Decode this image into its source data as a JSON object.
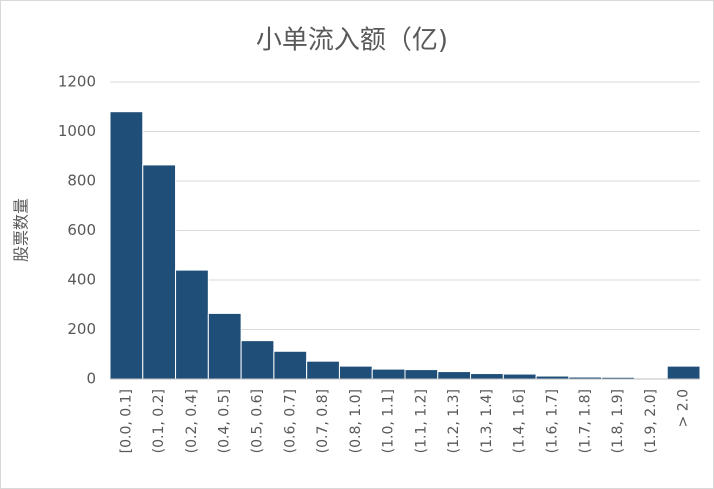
{
  "chart_data": {
    "type": "bar",
    "title": "小单流入额（亿)",
    "y_label": "股票数量",
    "categories": [
      "[0.0, 0.1]",
      "(0.1, 0.2]",
      "(0.2, 0.4]",
      "(0.4, 0.5]",
      "(0.5, 0.6]",
      "(0.6, 0.7]",
      "(0.7, 0.8]",
      "(0.8, 1.0]",
      "(1.0, 1.1]",
      "(1.1, 1.2]",
      "(1.2, 1.3]",
      "(1.3, 1.4]",
      "(1.4, 1.6]",
      "(1.6, 1.7]",
      "(1.7, 1.8]",
      "(1.8, 1.9]",
      "(1.9, 2.0]",
      "> 2.0"
    ],
    "values": [
      1080,
      865,
      440,
      265,
      155,
      112,
      72,
      52,
      40,
      38,
      30,
      22,
      20,
      12,
      8,
      7,
      4,
      52
    ],
    "color": "#1f4e79",
    "ylim": [
      0,
      1200
    ],
    "yticks": [
      0,
      200,
      400,
      600,
      800,
      1000,
      1200
    ],
    "grid": true
  }
}
